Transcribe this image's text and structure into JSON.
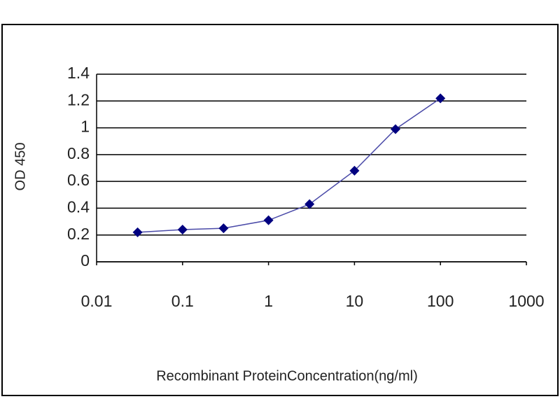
{
  "chart_data": {
    "type": "line",
    "x_label": "Recombinant ProteinConcentration(ng/ml)",
    "y_label": "OD 450",
    "x": [
      0.03,
      0.1,
      0.3,
      1,
      3,
      10,
      30,
      100
    ],
    "series": [
      {
        "color": "#000080",
        "values": [
          0.22,
          0.24,
          0.25,
          0.31,
          0.43,
          0.68,
          0.99,
          1.22
        ]
      }
    ],
    "xlim": [
      0.01,
      1000
    ],
    "xticks": [
      0.01,
      0.1,
      1,
      10,
      100,
      1000
    ],
    "xscale": "log",
    "ylim": [
      0,
      1.4
    ],
    "yticks": [
      0,
      0.2,
      0.4,
      0.6,
      0.8,
      1,
      1.2,
      1.4
    ],
    "grid": true
  }
}
